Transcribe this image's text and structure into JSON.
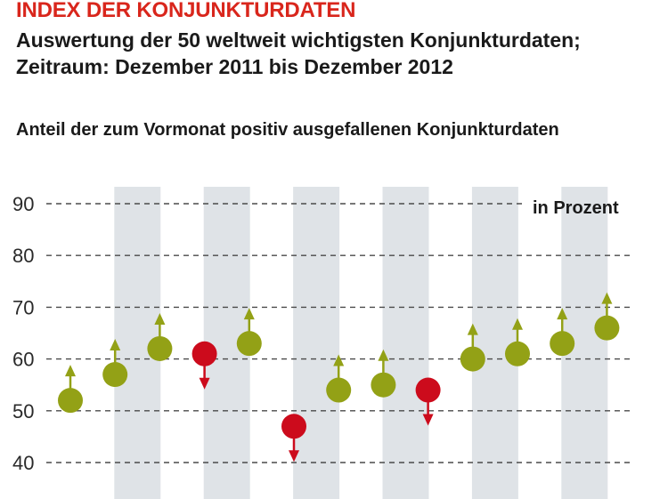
{
  "header": {
    "title": "INDEX DER KONJUNKTURDATEN",
    "subtitle_line1": "Auswertung der 50 weltweit wichtigsten Konjunkturdaten;",
    "subtitle_line2": "Zeitraum: Dezember 2011 bis Dezember 2012"
  },
  "colors": {
    "title": "#d9261c",
    "positive": "#93a116",
    "negative": "#cc0b1c",
    "band": "#dfe3e7",
    "grid": "#4a4a4a"
  },
  "chart_data": {
    "type": "scatter",
    "title": "Anteil der zum Vormonat positiv ausgefallenen Konjunkturdaten",
    "unit_label": "in Prozent",
    "ylim": [
      36,
      94
    ],
    "yticks": [
      90,
      80,
      70,
      60,
      50,
      40
    ],
    "x": [
      1,
      2,
      3,
      4,
      5,
      6,
      7,
      8,
      9,
      10,
      11,
      12,
      13
    ],
    "values": [
      52,
      57,
      62,
      61,
      63,
      47,
      54,
      55,
      54,
      60,
      61,
      63,
      66
    ],
    "direction": [
      "up",
      "up",
      "up",
      "down",
      "up",
      "down",
      "up",
      "up",
      "down",
      "up",
      "up",
      "up",
      "up"
    ],
    "shaded_bands_after_point": [
      1,
      3,
      5,
      7,
      9,
      11
    ]
  }
}
